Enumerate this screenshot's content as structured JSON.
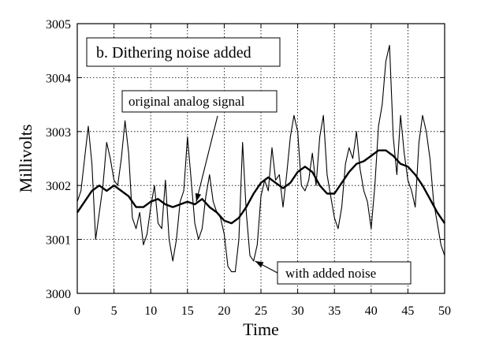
{
  "chart_data": {
    "type": "line",
    "title": "",
    "xlabel": "Time",
    "ylabel": "Millivolts",
    "xlim": [
      0,
      50
    ],
    "ylim": [
      3000,
      3005
    ],
    "xticks": [
      0,
      5,
      10,
      15,
      20,
      25,
      30,
      35,
      40,
      45,
      50
    ],
    "yticks": [
      3000,
      3001,
      3002,
      3003,
      3004,
      3005
    ],
    "grid": true,
    "panel_label": "b.  Dithering noise added",
    "annotations": [
      {
        "text": "original analog signal",
        "points_to": [
          16.2,
          3001.7
        ]
      },
      {
        "text": "with added noise",
        "points_to": [
          24.2,
          3000.6
        ]
      }
    ],
    "series": [
      {
        "color": "#000000",
        "line_width": 2.4,
        "x": [
          0,
          1,
          2,
          3,
          4,
          5,
          6,
          7,
          8,
          9,
          10,
          11,
          12,
          13,
          14,
          15,
          16,
          17,
          18,
          19,
          20,
          21,
          22,
          23,
          24,
          25,
          26,
          27,
          28,
          29,
          30,
          31,
          32,
          33,
          34,
          35,
          36,
          37,
          38,
          39,
          40,
          41,
          42,
          43,
          44,
          45,
          46,
          47,
          48,
          49,
          50
        ],
        "y": [
          3001.5,
          3001.7,
          3001.9,
          3002.0,
          3001.9,
          3002.0,
          3001.9,
          3001.8,
          3001.6,
          3001.6,
          3001.7,
          3001.75,
          3001.65,
          3001.6,
          3001.65,
          3001.7,
          3001.65,
          3001.75,
          3001.6,
          3001.5,
          3001.35,
          3001.3,
          3001.4,
          3001.6,
          3001.85,
          3002.05,
          3002.15,
          3002.05,
          3001.95,
          3002.05,
          3002.25,
          3002.35,
          3002.25,
          3002.0,
          3001.85,
          3001.85,
          3002.05,
          3002.25,
          3002.4,
          3002.45,
          3002.55,
          3002.65,
          3002.65,
          3002.55,
          3002.4,
          3002.35,
          3002.2,
          3002.0,
          3001.75,
          3001.5,
          3001.3
        ]
      },
      {
        "color": "#000000",
        "line_width": 1.1,
        "x": [
          0,
          0.5,
          1,
          1.5,
          2,
          2.5,
          3,
          3.5,
          4,
          4.5,
          5,
          5.5,
          6,
          6.5,
          7,
          7.5,
          8,
          8.5,
          9,
          9.5,
          10,
          10.5,
          11,
          11.5,
          12,
          12.5,
          13,
          13.5,
          14,
          14.5,
          15,
          15.5,
          16,
          16.5,
          17,
          17.5,
          18,
          18.5,
          19,
          19.5,
          20,
          20.5,
          21,
          21.5,
          22,
          22.5,
          23,
          23.5,
          24,
          24.5,
          25,
          25.5,
          26,
          26.5,
          27,
          27.5,
          28,
          28.5,
          29,
          29.5,
          30,
          30.5,
          31,
          31.5,
          32,
          32.5,
          33,
          33.5,
          34,
          34.5,
          35,
          35.5,
          36,
          36.5,
          37,
          37.5,
          38,
          38.5,
          39,
          39.5,
          40,
          40.5,
          41,
          41.5,
          42,
          42.5,
          43,
          43.5,
          44,
          44.5,
          45,
          45.5,
          46,
          46.5,
          47,
          47.5,
          48,
          48.5,
          49,
          49.5,
          50
        ],
        "y": [
          3001.7,
          3001.9,
          3002.5,
          3003.1,
          3002.4,
          3001.0,
          3001.5,
          3002.0,
          3002.8,
          3002.5,
          3002.1,
          3002.0,
          3002.5,
          3003.2,
          3002.6,
          3001.4,
          3001.2,
          3001.5,
          3000.9,
          3001.1,
          3001.6,
          3002.0,
          3001.3,
          3001.2,
          3002.1,
          3001.0,
          3000.6,
          3001.0,
          3001.7,
          3001.9,
          3002.9,
          3002.1,
          3001.3,
          3001.0,
          3001.2,
          3001.8,
          3002.2,
          3001.7,
          3001.5,
          3001.4,
          3001.1,
          3000.5,
          3000.4,
          3000.4,
          3001.0,
          3002.8,
          3001.5,
          3000.7,
          3000.6,
          3000.9,
          3001.8,
          3002.1,
          3001.9,
          3002.7,
          3002.1,
          3002.2,
          3001.6,
          3002.2,
          3002.9,
          3003.3,
          3003.0,
          3002.0,
          3001.9,
          3002.1,
          3002.6,
          3002.0,
          3002.9,
          3003.3,
          3002.2,
          3001.8,
          3001.4,
          3001.2,
          3001.6,
          3002.4,
          3002.7,
          3002.5,
          3003.0,
          3002.3,
          3001.9,
          3001.7,
          3001.2,
          3002.0,
          3003.1,
          3003.5,
          3004.3,
          3004.6,
          3002.9,
          3002.2,
          3003.3,
          3002.6,
          3002.1,
          3001.9,
          3001.6,
          3002.8,
          3003.3,
          3003.0,
          3002.5,
          3001.7,
          3001.3,
          3000.9,
          3000.7
        ]
      }
    ]
  }
}
